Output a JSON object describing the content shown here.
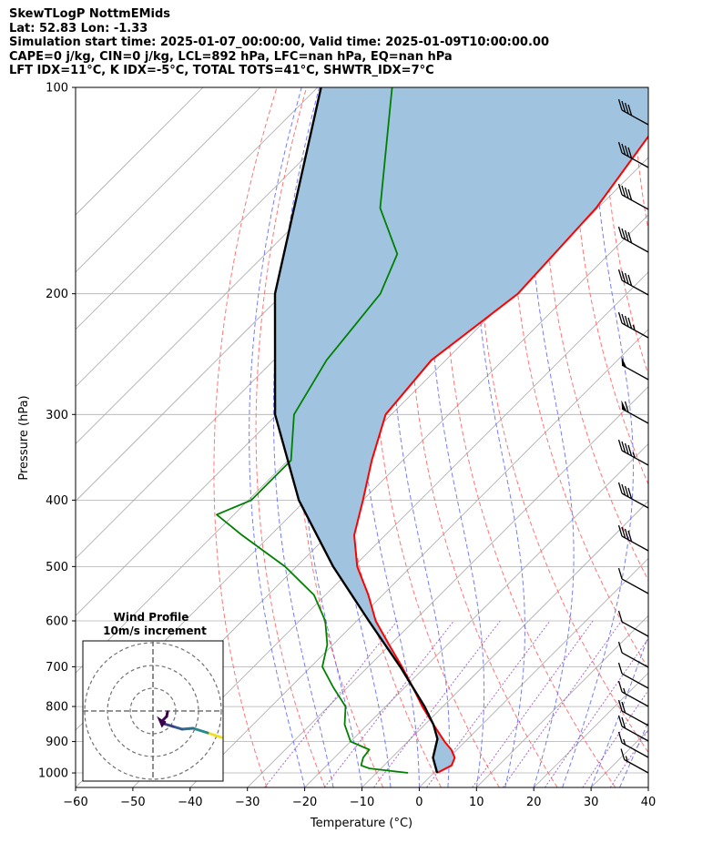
{
  "header": {
    "title": "SkewTLogP NottmEMids",
    "location": "Lat: 52.83   Lon: -1.33",
    "times": "Simulation start time: 2025-01-07_00:00:00, Valid time: 2025-01-09T10:00:00.00",
    "indices_1": "CAPE=0 j/kg, CIN=0 j/kg, LCL=892 hPa, LFC=nan hPa, EQ=nan hPa",
    "indices_2": "LFT IDX=11°C, K IDX=-5°C, TOTAL TOTS=41°C, SHWTR_IDX=7°C"
  },
  "chart_data": {
    "type": "line",
    "title": "SkewTLogP NottmEMids",
    "xlabel": "Temperature (°C)",
    "ylabel": "Pressure (hPa)",
    "xlim": [
      -60,
      40
    ],
    "ylim": [
      1050,
      100
    ],
    "skew": 1.0,
    "xticks": [
      -60,
      -50,
      -40,
      -30,
      -20,
      -10,
      0,
      10,
      20,
      30,
      40
    ],
    "xtick_labels": [
      "−60",
      "−50",
      "−40",
      "−30",
      "−20",
      "−10",
      "0",
      "10",
      "20",
      "30",
      "40"
    ],
    "yticks": [
      1000,
      900,
      800,
      700,
      600,
      500,
      400,
      300,
      200,
      100
    ],
    "ytick_labels": [
      "1000",
      "900",
      "800",
      "700",
      "600",
      "500",
      "400",
      "300",
      "200",
      "100"
    ],
    "grid": true,
    "colors": {
      "temperature": "#ff0000",
      "dewpoint": "#008000",
      "parcel": "#000000",
      "shade": "#a0c4e0",
      "dry_adiabat": "#ff6666",
      "moist_adiabat": "#6670ee",
      "mixing_ratio": "#9a4fc0",
      "isotherm": "#a8a8a8",
      "barb": "#000000"
    },
    "series": [
      {
        "name": "Temperature",
        "pressure": [
          1000,
          975,
          950,
          925,
          900,
          850,
          800,
          750,
          700,
          650,
          600,
          550,
          500,
          450,
          400,
          350,
          300,
          250,
          200,
          150,
          100
        ],
        "values": [
          0.6,
          1.8,
          1.0,
          -1.0,
          -3.6,
          -8.5,
          -13.6,
          -18.6,
          -24.1,
          -30.2,
          -36.7,
          -42.5,
          -49.4,
          -55.4,
          -60.0,
          -65.4,
          -71.0,
          -72.5,
          -69.0,
          -70.3,
          -76.0
        ]
      },
      {
        "name": "Dewpoint",
        "pressure": [
          1000,
          985,
          975,
          950,
          925,
          900,
          850,
          800,
          750,
          700,
          650,
          600,
          550,
          500,
          450,
          420,
          400,
          350,
          300,
          250,
          200,
          175,
          150,
          100
        ],
        "values": [
          -4.5,
          -12.0,
          -14.0,
          -15.0,
          -15.3,
          -20.0,
          -24.0,
          -27.0,
          -32.5,
          -38.0,
          -41.0,
          -45.5,
          -52.0,
          -62.0,
          -75.0,
          -83.0,
          -79.5,
          -79.5,
          -87.0,
          -90.8,
          -93.0,
          -97.0,
          -108.0,
          -127.0
        ]
      },
      {
        "name": "Parcel",
        "pressure": [
          1000,
          950,
          892,
          850,
          800,
          700,
          600,
          500,
          400,
          300,
          200,
          100
        ],
        "values": [
          0.6,
          -2.8,
          -5.3,
          -8.5,
          -13.2,
          -24.4,
          -37.9,
          -53.6,
          -71.2,
          -90.3,
          -111.4,
          -139.4
        ]
      }
    ],
    "inset": {
      "title_1": "Wind Profile",
      "title_2": "10m/s increment",
      "hodograph_u": [
        0.7,
        1.8,
        2.5,
        3.0,
        3.3,
        3.3,
        3.0,
        2.5
      ],
      "hodograph_v": [
        -1.0,
        -0.8,
        -0.8,
        -0.7,
        -0.4,
        0.2,
        0.8,
        1.8
      ],
      "hodograph_colors": [
        "#f0e020",
        "#2a8a8a",
        "#2c7090",
        "#305a8c",
        "#3a3d80",
        "#43236a",
        "#3f0a55",
        "#3a0048"
      ]
    }
  }
}
